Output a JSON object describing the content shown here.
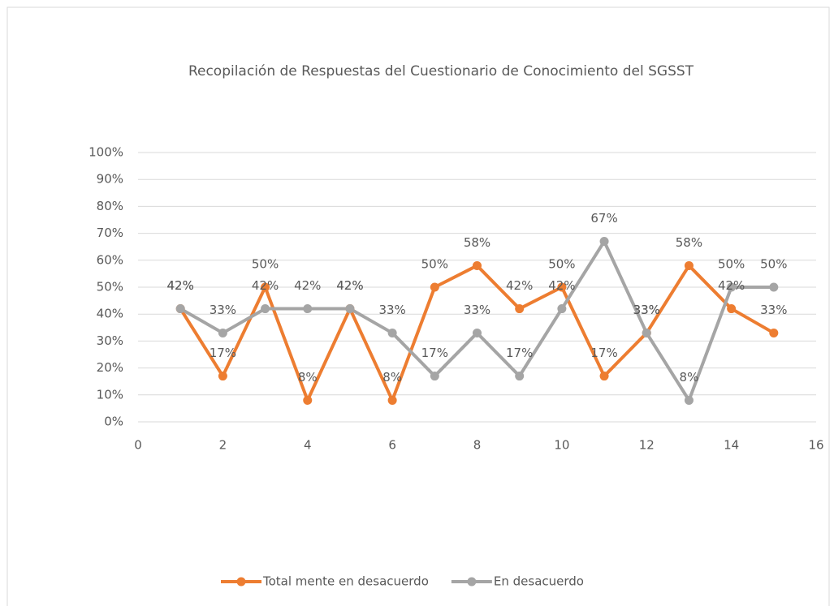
{
  "chart_data": {
    "type": "line",
    "title": "Recopilación de Respuestas del Cuestionario de Conocimiento del SGSST",
    "x": [
      1,
      2,
      3,
      4,
      5,
      6,
      7,
      8,
      9,
      10,
      11,
      12,
      13,
      14,
      15
    ],
    "series": [
      {
        "name": "Total mente en desacuerdo",
        "color": "#ed7d31",
        "values": [
          42,
          17,
          50,
          8,
          42,
          8,
          50,
          58,
          42,
          50,
          17,
          33,
          58,
          42,
          33
        ],
        "value_labels": [
          "42%",
          "17%",
          "50%",
          "8%",
          "42%",
          "8%",
          "50%",
          "58%",
          "42%",
          "50%",
          "17%",
          "33%",
          "58%",
          "42%",
          "33%"
        ]
      },
      {
        "name": "En desacuerdo",
        "color": "#a5a5a5",
        "values": [
          42,
          33,
          42,
          42,
          42,
          33,
          17,
          33,
          17,
          42,
          67,
          33,
          8,
          50,
          50
        ],
        "value_labels": [
          "42%",
          "33%",
          "42%",
          "42%",
          "42%",
          "33%",
          "17%",
          "33%",
          "17%",
          "42%",
          "67%",
          "33%",
          "8%",
          "50%",
          "50%"
        ]
      }
    ],
    "xlim": [
      0,
      16
    ],
    "xticks": [
      0,
      2,
      4,
      6,
      8,
      10,
      12,
      14,
      16
    ],
    "ylim": [
      0,
      100
    ],
    "yticks": [
      {
        "value": 0,
        "label": "0%"
      },
      {
        "value": 10,
        "label": "10%"
      },
      {
        "value": 20,
        "label": "20%"
      },
      {
        "value": 30,
        "label": "30%"
      },
      {
        "value": 40,
        "label": "40%"
      },
      {
        "value": 50,
        "label": "50%"
      },
      {
        "value": 60,
        "label": "60%"
      },
      {
        "value": 70,
        "label": "70%"
      },
      {
        "value": 80,
        "label": "80%"
      },
      {
        "value": 90,
        "label": "90%"
      },
      {
        "value": 100,
        "label": "100%"
      }
    ],
    "grid": true,
    "legend": "bottom"
  }
}
